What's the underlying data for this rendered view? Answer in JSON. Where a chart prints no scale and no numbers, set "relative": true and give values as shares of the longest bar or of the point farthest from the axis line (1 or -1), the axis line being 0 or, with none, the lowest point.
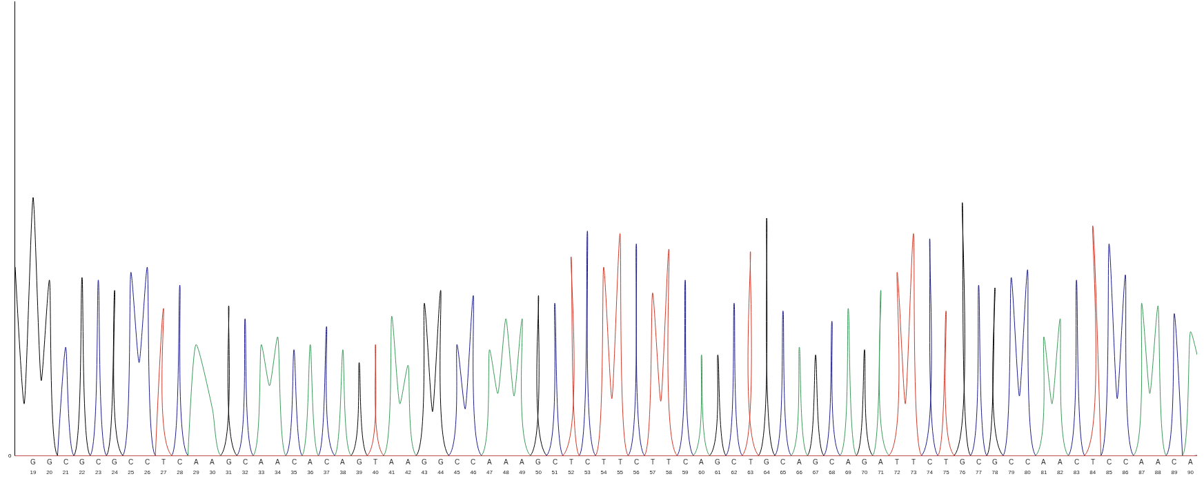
{
  "chart_data": {
    "type": "line",
    "relative": true,
    "grid": false,
    "marker": "none",
    "line_style": "solid",
    "annotations": [
      "0",
      "G",
      "G",
      "C",
      "G",
      "C",
      "G",
      "C",
      "C",
      "T",
      "C",
      "A",
      "A",
      "G",
      "C",
      "A",
      "A",
      "C",
      "A",
      "C",
      "A",
      "G",
      "T",
      "A",
      "A",
      "G",
      "G",
      "C",
      "C",
      "A",
      "A",
      "A",
      "G",
      "C",
      "T",
      "C",
      "T",
      "T",
      "C",
      "T",
      "T",
      "C",
      "A",
      "G",
      "C",
      "T",
      "G",
      "C",
      "A",
      "G",
      "C",
      "A",
      "G",
      "A",
      "T",
      "T",
      "C",
      "T",
      "G",
      "C",
      "G",
      "C",
      "C",
      "A",
      "A",
      "C",
      "T",
      "C",
      "C",
      "A",
      "A",
      "C",
      "A"
    ],
    "xlim": [
      17.9,
      90.4
    ],
    "xticks": [
      19,
      20,
      21,
      22,
      23,
      24,
      25,
      26,
      27,
      28,
      29,
      30,
      31,
      32,
      33,
      34,
      35,
      36,
      37,
      38,
      39,
      40,
      41,
      42,
      43,
      44,
      45,
      46,
      47,
      48,
      49,
      50,
      51,
      52,
      53,
      54,
      55,
      56,
      57,
      58,
      59,
      60,
      61,
      62,
      63,
      64,
      65,
      66,
      67,
      68,
      69,
      70,
      71,
      72,
      73,
      74,
      75,
      76,
      77,
      78,
      79,
      80,
      81,
      82,
      83,
      84,
      85,
      86,
      87,
      88,
      89,
      90
    ],
    "series": [
      {
        "color": "#000000",
        "x": [
          17.9,
          18.45,
          19,
          19.5,
          20,
          20.5,
          21.5,
          22,
          22.5,
          23.5,
          24,
          24.5,
          30.5,
          31,
          31.5,
          38.5,
          39,
          39.5,
          42.5,
          43,
          43.5,
          44,
          44.5,
          49.5,
          50,
          50.5,
          60.5,
          61,
          61.5,
          63.5,
          64,
          64.5,
          66.5,
          67,
          67.5,
          69.5,
          70,
          70.5,
          75.5,
          76,
          76.5,
          77.5,
          78,
          78.5,
          90.4
        ],
        "values": [
          0.73,
          0.2,
          1.0,
          0.29,
          0.68,
          0,
          0,
          0.69,
          0,
          0,
          0.64,
          0,
          0,
          0.58,
          0,
          0,
          0.36,
          0,
          0,
          0.59,
          0.17,
          0.64,
          0,
          0,
          0.62,
          0,
          0,
          0.39,
          0,
          0,
          0.92,
          0,
          0,
          0.39,
          0,
          0,
          0.41,
          0,
          0,
          0.98,
          0,
          0,
          0.65,
          0,
          0
        ]
      },
      {
        "color": "#1c1c8c",
        "x": [
          20.5,
          21,
          21.5,
          22.5,
          23,
          23.5,
          24.5,
          25,
          25.5,
          26,
          26.5,
          27.5,
          28,
          28.5,
          31.5,
          32,
          32.5,
          34.5,
          35,
          35.5,
          36.5,
          37,
          37.5,
          44.5,
          45,
          45.5,
          46,
          46.5,
          50.5,
          51,
          51.5,
          52.5,
          53,
          53.5,
          55.5,
          56,
          56.5,
          58.5,
          59,
          59.5,
          61.5,
          62,
          62.5,
          64.5,
          65,
          65.5,
          67.5,
          68,
          68.5,
          73.5,
          74,
          74.5,
          76.5,
          77,
          77.5,
          78.5,
          79,
          79.5,
          80,
          80.5,
          82.5,
          83,
          83.5,
          84.5,
          85,
          85.5,
          86,
          86.5,
          88.5,
          89,
          89.5
        ],
        "values": [
          0,
          0.42,
          0,
          0,
          0.68,
          0,
          0,
          0.71,
          0.36,
          0.73,
          0,
          0,
          0.66,
          0,
          0,
          0.53,
          0,
          0,
          0.41,
          0,
          0,
          0.5,
          0,
          0,
          0.43,
          0.18,
          0.62,
          0,
          0,
          0.59,
          0,
          0,
          0.87,
          0,
          0,
          0.82,
          0,
          0,
          0.68,
          0,
          0,
          0.59,
          0,
          0,
          0.56,
          0,
          0,
          0.52,
          0,
          0,
          0.84,
          0,
          0,
          0.66,
          0,
          0,
          0.69,
          0.23,
          0.72,
          0,
          0,
          0.68,
          0,
          0,
          0.82,
          0.22,
          0.7,
          0,
          0,
          0.55,
          0
        ]
      },
      {
        "color": "#3c9a5a",
        "x": [
          28.5,
          29,
          30,
          30.5,
          32.5,
          33,
          33.5,
          34,
          34.5,
          35.5,
          36,
          36.5,
          37.5,
          38,
          38.5,
          40.5,
          41,
          41.5,
          42,
          42.5,
          46.5,
          47,
          47.5,
          48,
          48.5,
          49,
          49.5,
          59.5,
          60,
          60.5,
          65.5,
          66,
          66.5,
          68.5,
          69,
          69.5,
          70.5,
          71,
          71.5,
          80.5,
          81,
          81.5,
          82,
          82.5,
          86.5,
          87,
          87.5,
          88,
          88.5,
          89.5,
          90,
          90.4
        ],
        "values": [
          0,
          0.43,
          0.18,
          0,
          0,
          0.43,
          0.27,
          0.46,
          0,
          0,
          0.43,
          0,
          0,
          0.41,
          0,
          0,
          0.54,
          0.2,
          0.35,
          0,
          0,
          0.41,
          0.24,
          0.53,
          0.23,
          0.53,
          0,
          0,
          0.39,
          0,
          0,
          0.42,
          0,
          0,
          0.57,
          0,
          0,
          0.64,
          0,
          0,
          0.46,
          0.2,
          0.53,
          0,
          0,
          0.59,
          0.24,
          0.58,
          0,
          0,
          0.48,
          0.39
        ]
      },
      {
        "color": "#d03a2a",
        "x": [
          26.5,
          27,
          27.5,
          39.5,
          40,
          40.5,
          51.5,
          52,
          52.5,
          53.5,
          54,
          54.5,
          55,
          55.5,
          56.5,
          57,
          57.5,
          58,
          58.5,
          62.5,
          63,
          63.5,
          71.5,
          72,
          72.5,
          73,
          73.5,
          74.5,
          75,
          75.5,
          83.5,
          84,
          84.5
        ],
        "values": [
          0,
          0.57,
          0,
          0,
          0.43,
          0,
          0,
          0.77,
          0,
          0,
          0.73,
          0.22,
          0.86,
          0,
          0,
          0.63,
          0.21,
          0.8,
          0,
          0,
          0.79,
          0,
          0,
          0.71,
          0.2,
          0.86,
          0,
          0,
          0.56,
          0,
          0,
          0.89,
          0
        ]
      }
    ]
  }
}
